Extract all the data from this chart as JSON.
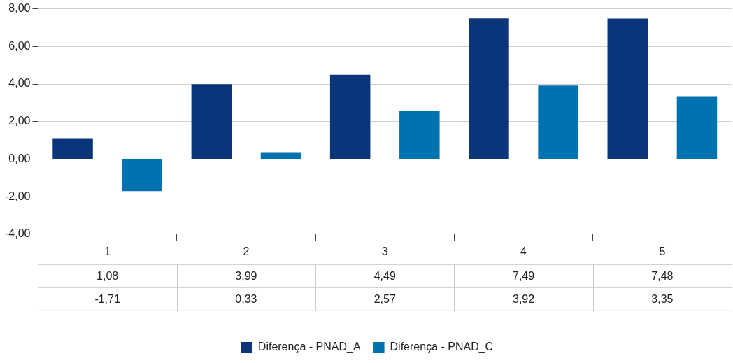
{
  "chart_data": {
    "type": "bar",
    "categories": [
      "1",
      "2",
      "3",
      "4",
      "5"
    ],
    "series": [
      {
        "name": "Diferença - PNAD_A",
        "color": "#0b357a",
        "values": [
          1.08,
          3.99,
          4.49,
          7.49,
          7.48
        ],
        "value_labels": [
          "1,08",
          "3,99",
          "4,49",
          "7,49",
          "7,48"
        ]
      },
      {
        "name": "Diferença - PNAD_C",
        "color": "#0072b0",
        "values": [
          -1.71,
          0.33,
          2.57,
          3.92,
          3.35
        ],
        "value_labels": [
          "-1,71",
          "0,33",
          "2,57",
          "3,92",
          "3,35"
        ]
      }
    ],
    "ylim": [
      -4,
      8
    ],
    "yticks": [
      {
        "value": -4,
        "label": "-4,00"
      },
      {
        "value": -2,
        "label": "-2,00"
      },
      {
        "value": 0,
        "label": "0,00"
      },
      {
        "value": 2,
        "label": "2,00"
      },
      {
        "value": 4,
        "label": "4,00"
      },
      {
        "value": 6,
        "label": "6,00"
      },
      {
        "value": 8,
        "label": "8,00"
      }
    ],
    "grid": "y",
    "legend": "bottom"
  }
}
